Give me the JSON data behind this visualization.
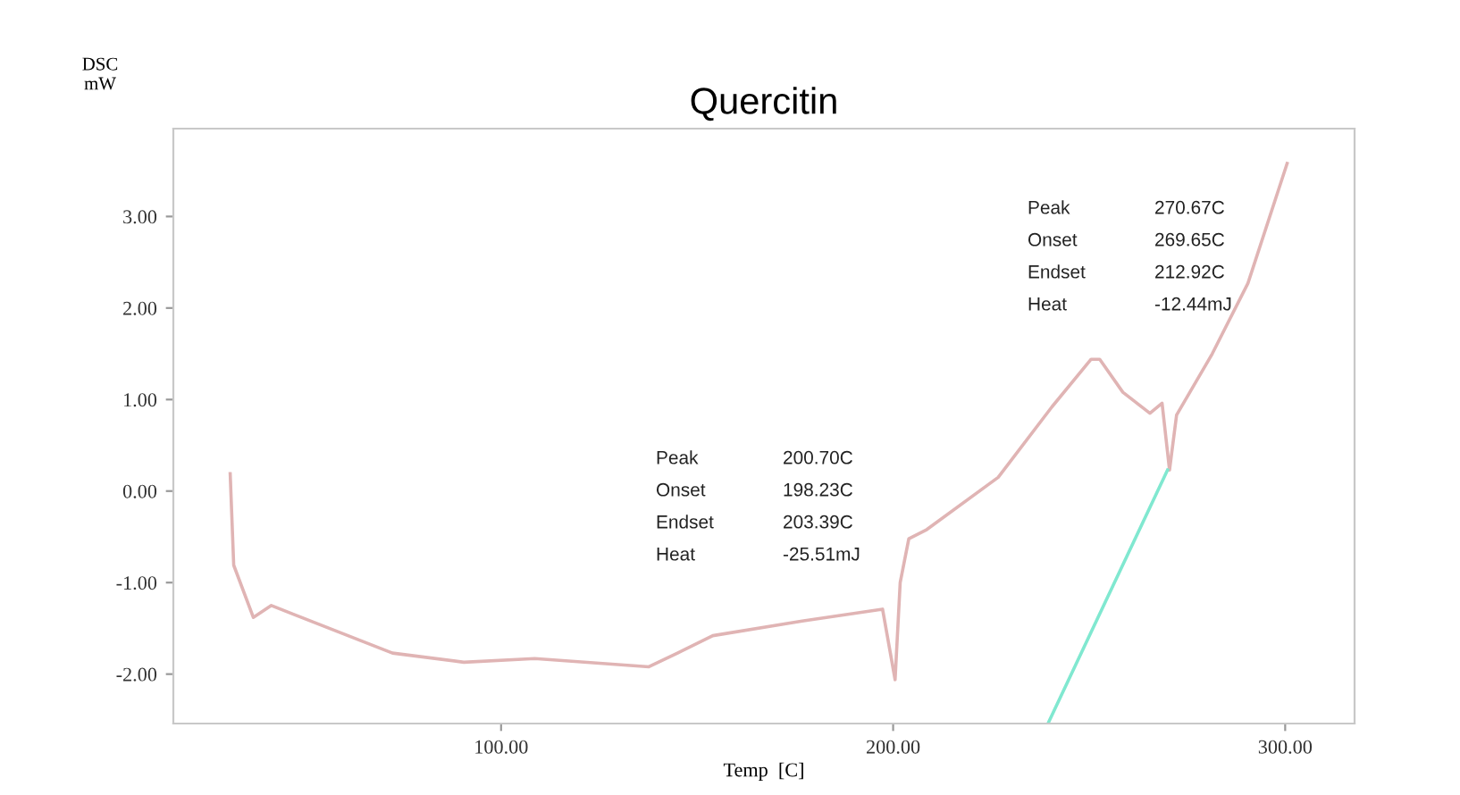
{
  "chart_data": {
    "type": "line",
    "title": "Quercitin",
    "xlabel": "Temp  [C]",
    "ylabel": "DSC\nmW",
    "xlim": [
      16.4,
      317.7
    ],
    "ylim": [
      -2.54,
      3.96
    ],
    "xticks": [
      {
        "value": 100,
        "label": "100.00"
      },
      {
        "value": 200,
        "label": "200.00"
      },
      {
        "value": 300,
        "label": "300.00"
      }
    ],
    "yticks": [
      {
        "value": -2,
        "label": "-2.00"
      },
      {
        "value": -1,
        "label": "-1.00"
      },
      {
        "value": 0,
        "label": "0.00"
      },
      {
        "value": 1,
        "label": "1.00"
      },
      {
        "value": 2,
        "label": "2.00"
      },
      {
        "value": 3,
        "label": "3.00"
      }
    ],
    "grid": false,
    "legend": false,
    "line_style": "solid",
    "marker": "none",
    "series": [
      {
        "color": "#e0b4b4",
        "x": [
          30.9,
          31.8,
          36.8,
          41.4,
          47.3,
          72.3,
          90.5,
          108.6,
          137.7,
          145,
          154,
          176.8,
          197.3,
          200.5,
          201.8,
          204,
          208.6,
          226.8,
          240.5,
          250.5,
          252.7,
          258.6,
          265.5,
          268.6,
          270.5,
          272.3,
          281.4,
          290.5,
          300.5
        ],
        "values": [
          0.19,
          -0.81,
          -1.38,
          -1.25,
          -1.35,
          -1.77,
          -1.87,
          -1.83,
          -1.92,
          -1.77,
          -1.58,
          -1.42,
          -1.29,
          -2.06,
          -1.0,
          -0.52,
          -0.42,
          0.15,
          0.92,
          1.44,
          1.44,
          1.08,
          0.85,
          0.96,
          0.23,
          0.83,
          1.5,
          2.27,
          3.58
        ]
      },
      {
        "color": "#80e8d0",
        "x": [
          239.5,
          270
        ],
        "values": [
          -2.54,
          0.23
        ]
      }
    ],
    "annotations": [
      "Peak",
      "200.70C",
      "Onset",
      "198.23C",
      "Endset",
      "203.39C",
      "Heat",
      "-25.51mJ",
      "Peak",
      "270.67C",
      "Onset",
      "269.65C",
      "Endset",
      "212.92C",
      "Heat",
      "-12.44mJ"
    ]
  }
}
